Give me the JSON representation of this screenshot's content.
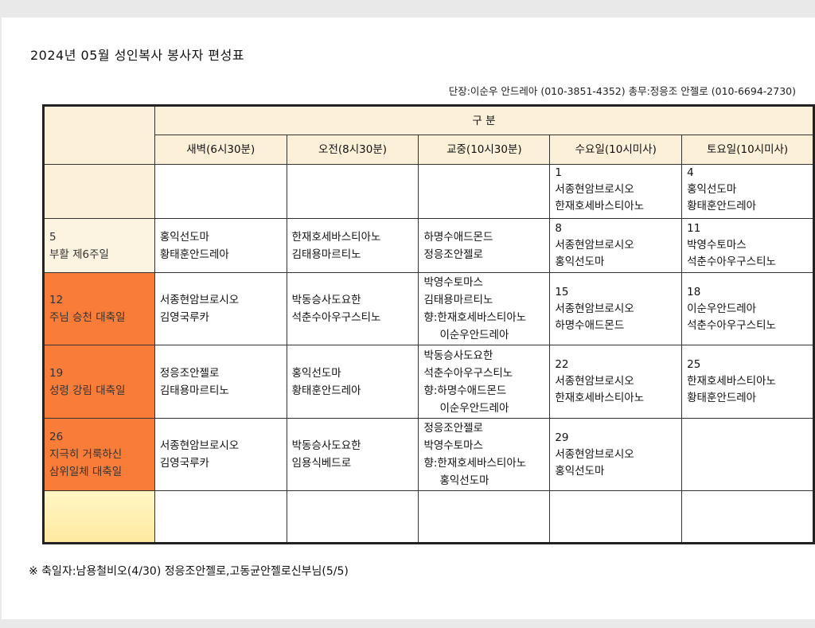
{
  "title": "2024년 05월 성인복사 봉사자 편성표",
  "contact": "단장:이순우 안드레아 (010-3851-4352)  총무:정응조 안젤로 (010-6694-2730)",
  "header": {
    "group": "구 분",
    "columns": [
      "새벽(6시30분)",
      "오전(8시30분)",
      "교중(10시30분)",
      "수요일(10시미사)",
      "토요일(10시미사)"
    ]
  },
  "colors": {
    "header": "#fdf0d9",
    "easter": "#fdf3e1",
    "feast": "#f97d38",
    "empty": "#fff2b0"
  },
  "rows": [
    {
      "label": [],
      "style": "header",
      "cells": [
        [],
        [],
        [],
        [
          "1",
          "서종현암브로시오",
          "한재호세바스티아노"
        ],
        [
          "4",
          "홍익선도마",
          "황태훈안드레아"
        ]
      ]
    },
    {
      "label": [
        "5",
        "부활 제6주일"
      ],
      "style": "beige",
      "cells": [
        [
          "홍익선도마",
          "황태훈안드레아"
        ],
        [
          "한재호세바스티아노",
          "김태용마르티노"
        ],
        [
          "하명수애드몬드",
          "정응조안젤로"
        ],
        [
          "8",
          "서종현암브로시오",
          "홍익선도마"
        ],
        [
          "11",
          "박영수토마스",
          "석춘수아우구스티노"
        ]
      ]
    },
    {
      "label": [
        "12",
        "주님 승천 대축일"
      ],
      "style": "orange",
      "cells": [
        [
          "서종현암브로시오",
          "김영국루카"
        ],
        [
          "박동승사도요한",
          "석춘수아우구스티노"
        ],
        [
          "박영수토마스",
          "김태용마르티노",
          "향:한재호세바스티아노",
          "이순우안드레아"
        ],
        [
          "15",
          "서종현암브로시오",
          "하명수애드몬드"
        ],
        [
          "18",
          "이순우안드레아",
          "석춘수아우구스티노"
        ]
      ]
    },
    {
      "label": [
        "19",
        "성령 강림 대축일"
      ],
      "style": "orange",
      "cells": [
        [
          "정응조안젤로",
          "김태용마르티노"
        ],
        [
          "홍익선도마",
          "황태훈안드레아"
        ],
        [
          "박동승사도요한",
          "석춘수아우구스티노",
          "향:하명수애드몬드",
          "이순우안드레아"
        ],
        [
          "22",
          "서종현암브로시오",
          "한재호세바스티아노"
        ],
        [
          "25",
          "한재호세바스티아노",
          "황태훈안드레아"
        ]
      ]
    },
    {
      "label": [
        "26",
        "지극히 거룩하신",
        "삼위일체 대축일"
      ],
      "style": "orange",
      "cells": [
        [
          "서종현암브로시오",
          "김영국루카"
        ],
        [
          "박동승사도요한",
          "임용식베드로"
        ],
        [
          "정응조안젤로",
          "박영수토마스",
          "향:한재호세바스티아노",
          "홍익선도마"
        ],
        [
          "29",
          "서종현암브로시오",
          "홍익선도마"
        ],
        []
      ]
    },
    {
      "label": [],
      "style": "yellow",
      "cells": [
        [],
        [],
        [],
        [],
        []
      ]
    }
  ],
  "note": "※ 축일자:남용철비오(4/30) 정응조안젤로,고동균안젤로신부님(5/5)"
}
